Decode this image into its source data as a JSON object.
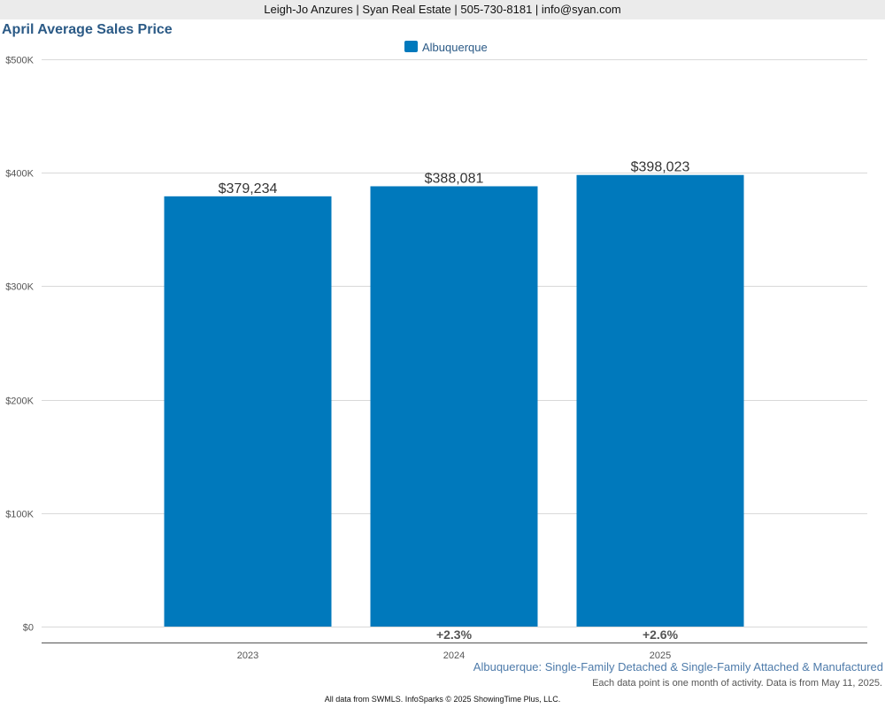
{
  "header": {
    "banner": "Leigh-Jo Anzures | Syan Real Estate | 505-730-8181 | info@syan.com"
  },
  "chart_data": {
    "type": "bar",
    "title": "April Average Sales Price",
    "categories": [
      "2023",
      "2024",
      "2025"
    ],
    "series": [
      {
        "name": "Albuquerque",
        "color": "#0079bc",
        "values": [
          379234,
          388081,
          398023
        ],
        "value_labels": [
          "$379,234",
          "$388,081",
          "$398,023"
        ]
      }
    ],
    "change_labels": [
      "",
      "+2.3%",
      "+2.6%"
    ],
    "ylim": [
      0,
      500000
    ],
    "yticks": [
      0,
      100000,
      200000,
      300000,
      400000,
      500000
    ],
    "ytick_labels": [
      "$0",
      "$100K",
      "$200K",
      "$300K",
      "$400K",
      "$500K"
    ],
    "xlabel": "",
    "ylabel": "",
    "grid": true,
    "legend": "top-center"
  },
  "footer": {
    "subtitle": "Albuquerque: Single-Family Detached & Single-Family Attached & Manufactured",
    "note": "Each data point is one month of activity. Data is from May 11, 2025.",
    "source": "All data from SWMLS. InfoSparks © 2025 ShowingTime Plus, LLC."
  }
}
